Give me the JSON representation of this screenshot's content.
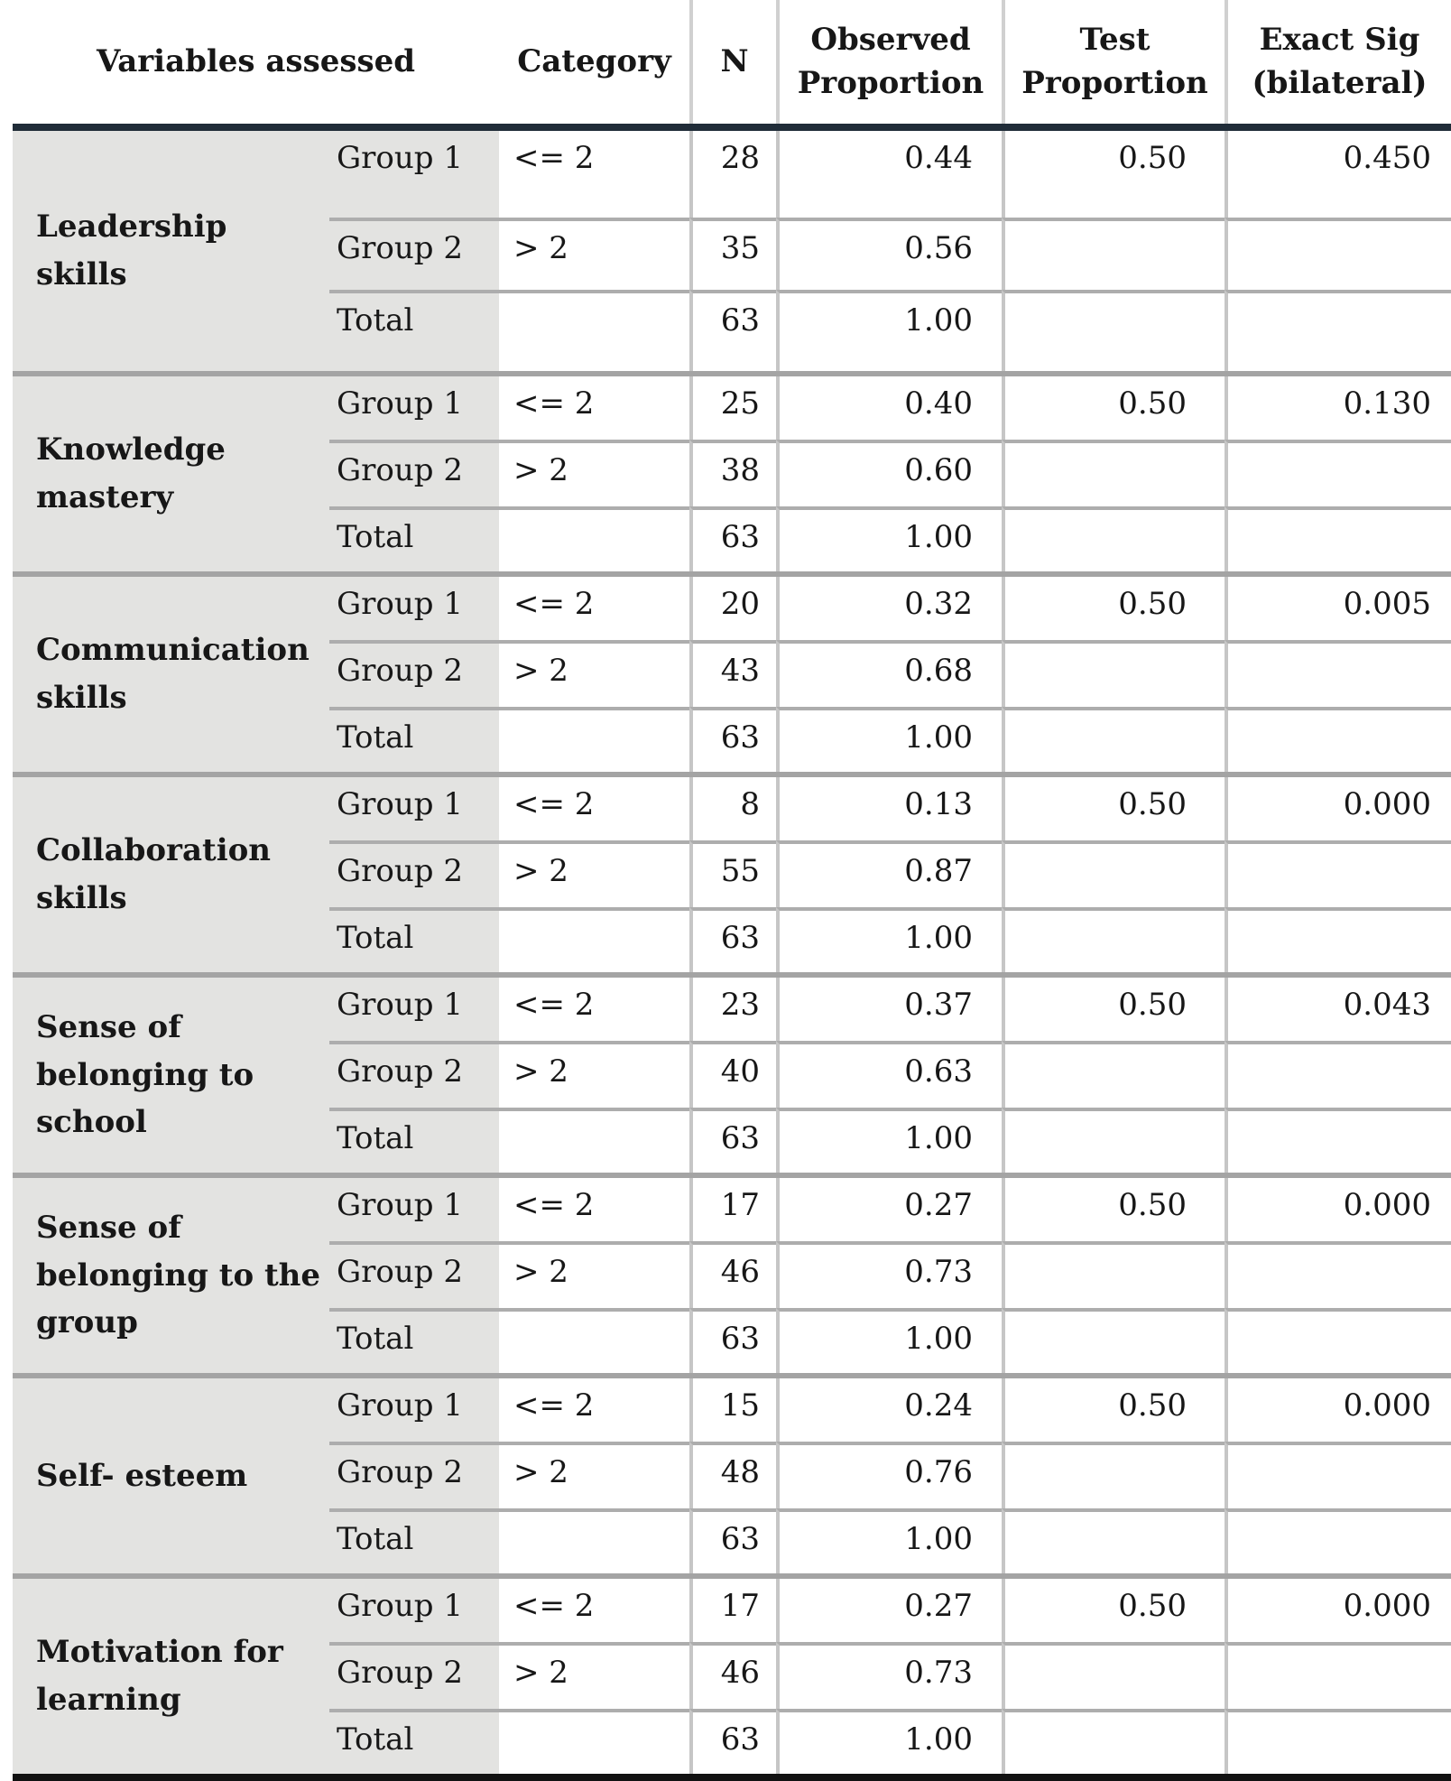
{
  "table": {
    "headers": {
      "variables": "Variables assessed",
      "category": "Category",
      "n": "N",
      "observed": "Observed Proportion",
      "test": "Test Proportion",
      "sig": "Exact Sig (bilateral)"
    },
    "blocks": [
      {
        "variable": "Leadership\nskills",
        "rows": [
          {
            "group": "Group 1",
            "category": "<= 2",
            "n": "28",
            "observed": "0.44",
            "test": "0.50",
            "sig": "0.450"
          },
          {
            "group": "Group 2",
            "category": "> 2",
            "n": "35",
            "observed": "0.56",
            "test": "",
            "sig": ""
          },
          {
            "group": "Total",
            "category": "",
            "n": "63",
            "observed": "1.00",
            "test": "",
            "sig": ""
          }
        ]
      },
      {
        "variable": "Knowledge\nmastery",
        "rows": [
          {
            "group": "Group 1",
            "category": "<= 2",
            "n": "25",
            "observed": "0.40",
            "test": "0.50",
            "sig": "0.130"
          },
          {
            "group": "Group 2",
            "category": "> 2",
            "n": "38",
            "observed": "0.60",
            "test": "",
            "sig": ""
          },
          {
            "group": "Total",
            "category": "",
            "n": "63",
            "observed": "1.00",
            "test": "",
            "sig": ""
          }
        ]
      },
      {
        "variable": "Communication\nskills",
        "rows": [
          {
            "group": "Group 1",
            "category": "<= 2",
            "n": "20",
            "observed": "0.32",
            "test": "0.50",
            "sig": "0.005"
          },
          {
            "group": "Group 2",
            "category": "> 2",
            "n": "43",
            "observed": "0.68",
            "test": "",
            "sig": ""
          },
          {
            "group": "Total",
            "category": "",
            "n": "63",
            "observed": "1.00",
            "test": "",
            "sig": ""
          }
        ]
      },
      {
        "variable": "Collaboration\nskills",
        "rows": [
          {
            "group": "Group 1",
            "category": "<= 2",
            "n": "8",
            "observed": "0.13",
            "test": "0.50",
            "sig": "0.000"
          },
          {
            "group": "Group 2",
            "category": "> 2",
            "n": "55",
            "observed": "0.87",
            "test": "",
            "sig": ""
          },
          {
            "group": "Total",
            "category": "",
            "n": "63",
            "observed": "1.00",
            "test": "",
            "sig": ""
          }
        ]
      },
      {
        "variable": "Sense of\nbelonging to\nschool",
        "rows": [
          {
            "group": "Group 1",
            "category": "<= 2",
            "n": "23",
            "observed": "0.37",
            "test": "0.50",
            "sig": "0.043"
          },
          {
            "group": "Group 2",
            "category": "> 2",
            "n": "40",
            "observed": "0.63",
            "test": "",
            "sig": ""
          },
          {
            "group": "Total",
            "category": "",
            "n": "63",
            "observed": "1.00",
            "test": "",
            "sig": ""
          }
        ]
      },
      {
        "variable": "Sense of\nbelonging to the\ngroup",
        "rows": [
          {
            "group": "Group 1",
            "category": "<= 2",
            "n": "17",
            "observed": "0.27",
            "test": "0.50",
            "sig": "0.000"
          },
          {
            "group": "Group 2",
            "category": "> 2",
            "n": "46",
            "observed": "0.73",
            "test": "",
            "sig": ""
          },
          {
            "group": "Total",
            "category": "",
            "n": "63",
            "observed": "1.00",
            "test": "",
            "sig": ""
          }
        ]
      },
      {
        "variable": "Self- esteem",
        "rows": [
          {
            "group": "Group 1",
            "category": "<= 2",
            "n": "15",
            "observed": "0.24",
            "test": "0.50",
            "sig": "0.000"
          },
          {
            "group": "Group 2",
            "category": "> 2",
            "n": "48",
            "observed": "0.76",
            "test": "",
            "sig": ""
          },
          {
            "group": "Total",
            "category": "",
            "n": "63",
            "observed": "1.00",
            "test": "",
            "sig": ""
          }
        ]
      },
      {
        "variable": "Motivation for\nlearning",
        "rows": [
          {
            "group": "Group 1",
            "category": "<= 2",
            "n": "17",
            "observed": "0.27",
            "test": "0.50",
            "sig": "0.000"
          },
          {
            "group": "Group 2",
            "category": "> 2",
            "n": "46",
            "observed": "0.73",
            "test": "",
            "sig": ""
          },
          {
            "group": "Total",
            "category": "",
            "n": "63",
            "observed": "1.00",
            "test": "",
            "sig": ""
          }
        ]
      }
    ]
  }
}
